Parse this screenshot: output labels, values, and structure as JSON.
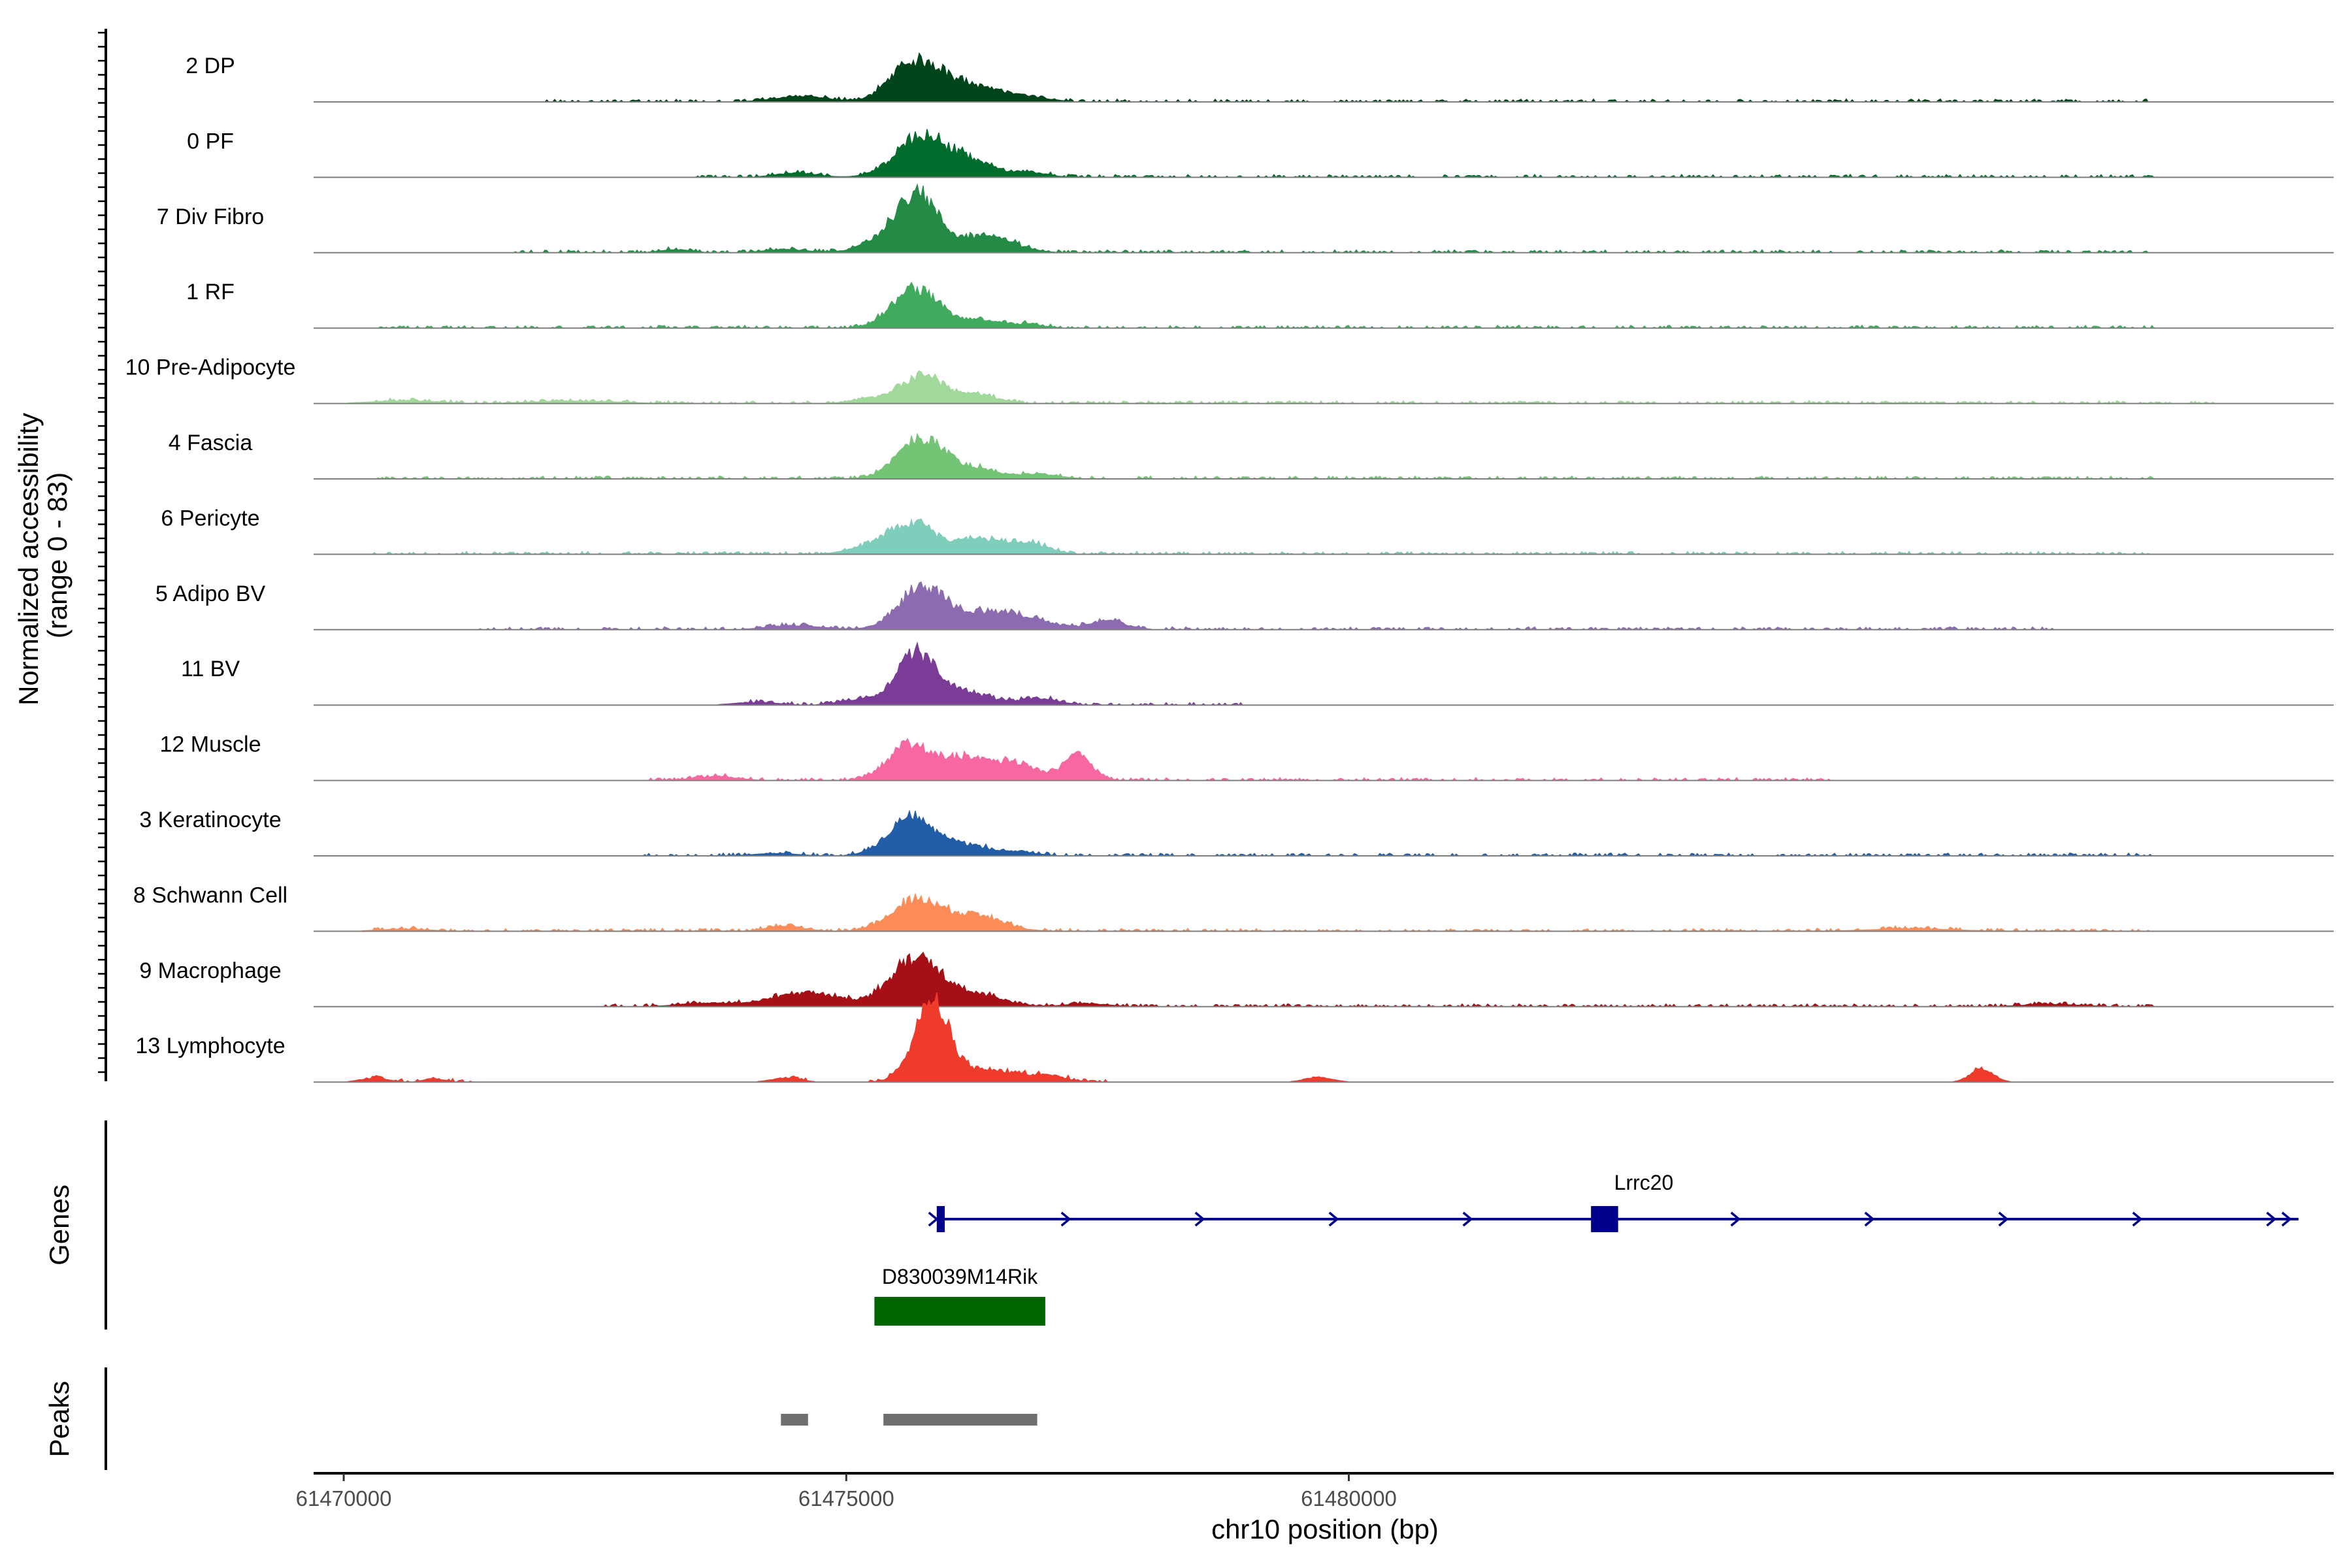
{
  "chart_data": {
    "type": "area",
    "chromosome": "chr10",
    "xlabel": "chr10 position (bp)",
    "ylabel": "Normalized accessibility\n(range 0 - 83)",
    "y_range": [
      0,
      83
    ],
    "xlim": [
      61469700,
      61489800
    ],
    "x_ticks": [
      61470000,
      61475000,
      61480000
    ],
    "x_tick_labels": [
      "61470000",
      "61475000",
      "61480000"
    ],
    "grid": false,
    "series": [
      {
        "name": "2 DP",
        "color": "#00441b",
        "peaks": [
          [
            61475780,
            0.95,
            260
          ],
          [
            61476350,
            0.28,
            200
          ],
          [
            61476800,
            0.14,
            200
          ],
          [
            61474550,
            0.13,
            260
          ],
          [
            61475500,
            0.2,
            160
          ]
        ],
        "baseline": [
          [
            61472000,
            61488000
          ]
        ]
      },
      {
        "name": "0 PF",
        "color": "#006d2c",
        "peaks": [
          [
            61475750,
            1.0,
            250
          ],
          [
            61476250,
            0.33,
            220
          ],
          [
            61476800,
            0.12,
            180
          ],
          [
            61474500,
            0.1,
            200
          ]
        ],
        "baseline": [
          [
            61473500,
            61488000
          ]
        ]
      },
      {
        "name": "7 Div Fibro",
        "color": "#238b45",
        "peaks": [
          [
            61475700,
            1.42,
            210
          ],
          [
            61476400,
            0.4,
            260
          ],
          [
            61475300,
            0.2,
            200
          ],
          [
            61473300,
            0.07,
            150
          ],
          [
            61474400,
            0.08,
            200
          ]
        ],
        "baseline": [
          [
            61471700,
            61488000
          ]
        ]
      },
      {
        "name": "1 RF",
        "color": "#41ab5d",
        "peaks": [
          [
            61475700,
            0.95,
            230
          ],
          [
            61476350,
            0.2,
            180
          ],
          [
            61476800,
            0.09,
            160
          ]
        ],
        "baseline": [
          [
            61470300,
            61488000
          ]
        ]
      },
      {
        "name": "10 Pre-Adipocyte",
        "color": "#a1d99b",
        "peaks": [
          [
            61475750,
            0.65,
            220
          ],
          [
            61476300,
            0.2,
            200
          ],
          [
            61470600,
            0.07,
            300
          ],
          [
            61472300,
            0.06,
            400
          ],
          [
            61475200,
            0.1,
            160
          ]
        ],
        "baseline": [
          [
            61470300,
            61488600
          ]
        ]
      },
      {
        "name": "4 Fascia",
        "color": "#74c476",
        "peaks": [
          [
            61475750,
            1.0,
            230
          ],
          [
            61476300,
            0.22,
            200
          ],
          [
            61476900,
            0.12,
            200
          ]
        ],
        "baseline": [
          [
            61470300,
            61488000
          ]
        ]
      },
      {
        "name": "6 Pericyte",
        "color": "#7fcdbb",
        "peaks": [
          [
            61475650,
            0.72,
            230
          ],
          [
            61476300,
            0.38,
            220
          ],
          [
            61476800,
            0.28,
            200
          ],
          [
            61475200,
            0.15,
            200
          ]
        ],
        "baseline": [
          [
            61470300,
            61488000
          ]
        ]
      },
      {
        "name": "5 Adipo BV",
        "color": "#8c6bb1",
        "peaks": [
          [
            61475750,
            1.0,
            230
          ],
          [
            61476350,
            0.38,
            300
          ],
          [
            61476800,
            0.2,
            250
          ],
          [
            61477600,
            0.22,
            180
          ],
          [
            61474500,
            0.1,
            260
          ]
        ],
        "baseline": [
          [
            61471300,
            61487000
          ]
        ]
      },
      {
        "name": "11 BV",
        "color": "#7a3c97",
        "peaks": [
          [
            61475700,
            1.23,
            200
          ],
          [
            61476200,
            0.3,
            220
          ],
          [
            61476900,
            0.16,
            200
          ],
          [
            61475100,
            0.12,
            180
          ],
          [
            61474100,
            0.07,
            200
          ]
        ],
        "baseline": [
          [
            61474000,
            61479000
          ]
        ]
      },
      {
        "name": "12 Muscle",
        "color": "#f768a1",
        "peaks": [
          [
            61475600,
            0.8,
            200
          ],
          [
            61476150,
            0.55,
            260
          ],
          [
            61477300,
            0.62,
            140
          ],
          [
            61476700,
            0.4,
            200
          ],
          [
            61473700,
            0.1,
            200
          ]
        ],
        "baseline": [
          [
            61473000,
            61484800
          ]
        ]
      },
      {
        "name": "3 Keratinocyte",
        "color": "#225ea8",
        "peaks": [
          [
            61475650,
            0.9,
            230
          ],
          [
            61476200,
            0.25,
            200
          ],
          [
            61476700,
            0.1,
            180
          ],
          [
            61474300,
            0.06,
            200
          ]
        ],
        "baseline": [
          [
            61472900,
            61488000
          ]
        ]
      },
      {
        "name": "8 Schwann Cell",
        "color": "#fc8d59",
        "peaks": [
          [
            61475700,
            0.75,
            240
          ],
          [
            61476300,
            0.37,
            260
          ],
          [
            61474400,
            0.12,
            180
          ],
          [
            61470600,
            0.05,
            250
          ],
          [
            61485600,
            0.06,
            400
          ]
        ],
        "baseline": [
          [
            61470300,
            61488000
          ]
        ]
      },
      {
        "name": "9 Macrophage",
        "color": "#a50f15",
        "peaks": [
          [
            61475700,
            1.15,
            250
          ],
          [
            61476300,
            0.27,
            260
          ],
          [
            61474600,
            0.33,
            350
          ],
          [
            61473600,
            0.08,
            250
          ],
          [
            61477400,
            0.07,
            200
          ],
          [
            61487000,
            0.05,
            300
          ]
        ],
        "baseline": [
          [
            61472600,
            61488000
          ]
        ]
      },
      {
        "name": "13 Lymphocyte",
        "color": "#ef3b2c",
        "peaks": [
          [
            61475850,
            1.9,
            180
          ],
          [
            61476450,
            0.28,
            250
          ],
          [
            61477000,
            0.15,
            180
          ],
          [
            61470300,
            0.1,
            130
          ],
          [
            61470900,
            0.08,
            100
          ],
          [
            61474400,
            0.1,
            140
          ],
          [
            61479700,
            0.12,
            130
          ],
          [
            61486300,
            0.35,
            110
          ]
        ],
        "baseline": [
          [
            61470200,
            61471300
          ],
          [
            61474200,
            61474600
          ],
          [
            61475200,
            61477600
          ]
        ]
      }
    ],
    "genes": [
      {
        "name": "Lrrc20",
        "color": "#00008b",
        "strand": "+",
        "start": 61475900,
        "end": 61489450,
        "exons": [
          [
            61475900,
            61475980
          ],
          [
            61482410,
            61482680
          ]
        ]
      },
      {
        "name": "D830039M14Rik",
        "color": "#006400",
        "strand": "",
        "start": 61475280,
        "end": 61476980,
        "exons": [
          [
            61475280,
            61476980
          ]
        ]
      }
    ],
    "peaks": [
      {
        "start": 61474350,
        "end": 61474620
      },
      {
        "start": 61475370,
        "end": 61476900
      }
    ],
    "panel_labels": {
      "genes": "Genes",
      "peaks": "Peaks"
    }
  }
}
